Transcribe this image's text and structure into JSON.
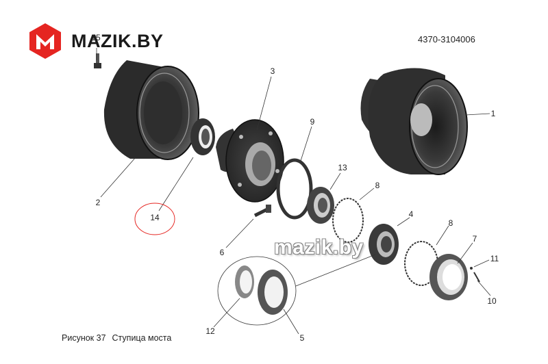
{
  "header": {
    "logo_text": "MAZIK.BY",
    "part_number": "4370-3104006"
  },
  "watermark": "mazik.by",
  "caption": {
    "figure": "Рисунок 37",
    "title": "Ступица моста"
  },
  "callouts": [
    "1",
    "2",
    "3",
    "4",
    "5",
    "6",
    "7",
    "8",
    "8",
    "9",
    "10",
    "11",
    "12",
    "13",
    "14",
    "15"
  ],
  "colors": {
    "brand_red": "#e52521",
    "highlight_circle": "#e52521",
    "line": "#333333"
  }
}
